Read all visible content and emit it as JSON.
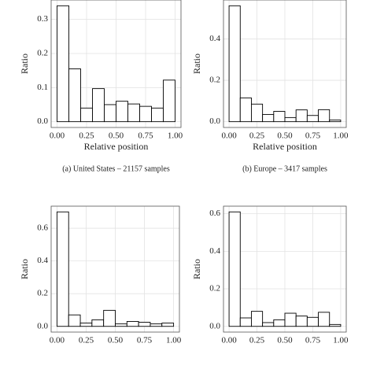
{
  "chart_data": [
    {
      "type": "histogram",
      "ylabel": "Ratio",
      "xlabel": "Relative position",
      "caption": "(a) United States – 21157 samples",
      "bins": [
        0,
        0.1,
        0.2,
        0.3,
        0.4,
        0.5,
        0.6,
        0.7,
        0.8,
        0.9,
        1.0
      ],
      "values": [
        0.34,
        0.155,
        0.04,
        0.097,
        0.05,
        0.06,
        0.052,
        0.045,
        0.04,
        0.122
      ],
      "xlim": [
        -0.05,
        1.05
      ],
      "ylim": [
        -0.017,
        0.357
      ],
      "xticks": [
        {
          "value": 0,
          "label": "0.00"
        },
        {
          "value": 0.25,
          "label": "0.25"
        },
        {
          "value": 0.5,
          "label": "0.50"
        },
        {
          "value": 0.75,
          "label": "0.75"
        },
        {
          "value": 1,
          "label": "1.00"
        }
      ],
      "yticks": [
        {
          "value": 0,
          "label": "0.0"
        },
        0.1,
        0.2,
        0.3
      ],
      "grid": true,
      "color": "#ffffff"
    },
    {
      "type": "histogram",
      "ylabel": "Ratio",
      "xlabel": "Relative position",
      "caption": "(b) Europe – 3417 samples",
      "bins": [
        0,
        0.1,
        0.2,
        0.3,
        0.4,
        0.5,
        0.6,
        0.7,
        0.8,
        0.9,
        1.0
      ],
      "values": [
        0.56,
        0.115,
        0.085,
        0.035,
        0.05,
        0.02,
        0.057,
        0.03,
        0.058,
        0.008
      ],
      "xlim": [
        -0.05,
        1.05
      ],
      "ylim": [
        -0.028,
        0.588
      ],
      "xticks": [
        {
          "value": 0,
          "label": "0.00"
        },
        {
          "value": 0.25,
          "label": "0.25"
        },
        {
          "value": 0.5,
          "label": "0.50"
        },
        {
          "value": 0.75,
          "label": "0.75"
        },
        {
          "value": 1,
          "label": "1.00"
        }
      ],
      "yticks": [
        {
          "value": 0,
          "label": "0.0"
        },
        0.2,
        0.4
      ],
      "grid": true,
      "color": "#ffffff"
    },
    {
      "type": "histogram",
      "ylabel": "Ratio",
      "bins": [
        0,
        0.1,
        0.2,
        0.3,
        0.4,
        0.5,
        0.6,
        0.7,
        0.8,
        0.9,
        1.0
      ],
      "values": [
        0.7,
        0.07,
        0.02,
        0.04,
        0.098,
        0.015,
        0.03,
        0.025,
        0.015,
        0.02
      ],
      "xlim": [
        -0.05,
        1.05
      ],
      "ylim": [
        -0.035,
        0.735
      ],
      "xticks": [
        {
          "value": 0,
          "label": "0.00"
        },
        {
          "value": 0.25,
          "label": "0.25"
        },
        {
          "value": 0.5,
          "label": "0.50"
        },
        {
          "value": 0.75,
          "label": "0.75"
        },
        {
          "value": 1,
          "label": "1.00"
        }
      ],
      "yticks": [
        {
          "value": 0,
          "label": "0.0"
        },
        0.2,
        0.4,
        0.6
      ],
      "grid": true,
      "color": "#ffffff"
    },
    {
      "type": "histogram",
      "ylabel": "Ratio",
      "bins": [
        0,
        0.1,
        0.2,
        0.3,
        0.4,
        0.5,
        0.6,
        0.7,
        0.8,
        0.9,
        1.0
      ],
      "values": [
        0.61,
        0.045,
        0.08,
        0.02,
        0.035,
        0.07,
        0.055,
        0.048,
        0.075,
        0.01
      ],
      "xlim": [
        -0.05,
        1.05
      ],
      "ylim": [
        -0.0305,
        0.6405
      ],
      "xticks": [
        {
          "value": 0,
          "label": "0.00"
        },
        {
          "value": 0.25,
          "label": "0.25"
        },
        {
          "value": 0.5,
          "label": "0.50"
        },
        {
          "value": 0.75,
          "label": "0.75"
        },
        {
          "value": 1,
          "label": "1.00"
        }
      ],
      "yticks": [
        {
          "value": 0,
          "label": "0.0"
        },
        0.2,
        0.4,
        0.6
      ],
      "grid": true,
      "color": "#ffffff"
    }
  ]
}
